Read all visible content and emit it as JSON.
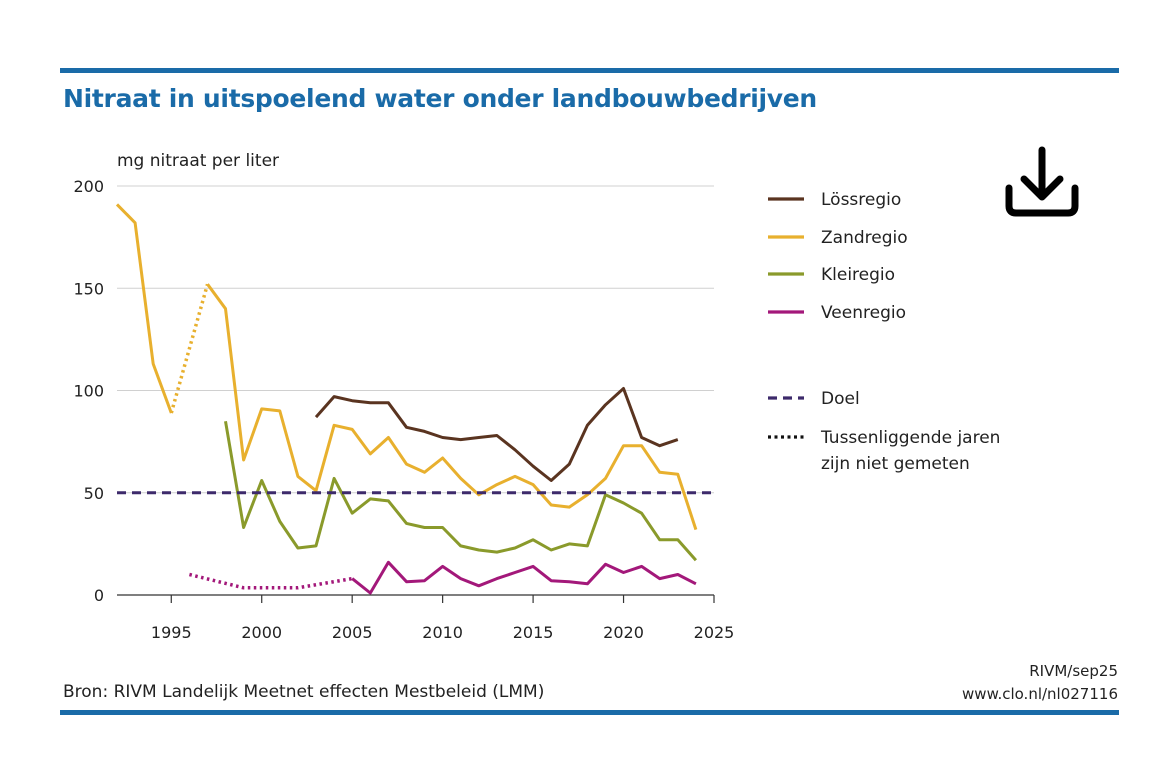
{
  "title": "Nitraat in uitspoelend water onder landbouwbedrijven",
  "source": "Bron: RIVM Landelijk Meetnet effecten Mestbeleid (LMM)",
  "credit_line1": "RIVM/sep25",
  "credit_line2": "www.clo.nl/nl027116",
  "colors": {
    "rule": "#1a6ba8",
    "title": "#1a6ba8",
    "grid": "#d0d0d0",
    "axis": "#333333"
  },
  "icons": {
    "download": "download-icon"
  },
  "chart_data": {
    "type": "line",
    "ylabel": "mg nitraat per liter",
    "xlim": [
      1992,
      2025
    ],
    "ylim": [
      0,
      200
    ],
    "x_ticks": [
      1995,
      2000,
      2005,
      2010,
      2015,
      2020,
      2025
    ],
    "y_ticks": [
      0,
      50,
      100,
      150,
      200
    ],
    "grid": true,
    "legend_position": "right",
    "series": [
      {
        "name": "Lössregio",
        "color": "#5a3420",
        "segments": [
          {
            "style": "solid",
            "points": [
              [
                2003,
                87
              ],
              [
                2004,
                97
              ],
              [
                2005,
                95
              ],
              [
                2006,
                94
              ],
              [
                2007,
                94
              ],
              [
                2008,
                82
              ],
              [
                2009,
                80
              ],
              [
                2010,
                77
              ],
              [
                2011,
                76
              ],
              [
                2012,
                77
              ],
              [
                2013,
                78
              ],
              [
                2014,
                71
              ],
              [
                2015,
                63
              ],
              [
                2016,
                56
              ],
              [
                2017,
                64
              ],
              [
                2018,
                83
              ],
              [
                2019,
                93
              ],
              [
                2020,
                101
              ],
              [
                2021,
                77
              ],
              [
                2022,
                73
              ],
              [
                2023,
                76
              ]
            ]
          }
        ]
      },
      {
        "name": "Zandregio",
        "color": "#e8b02e",
        "segments": [
          {
            "style": "solid",
            "points": [
              [
                1992,
                191
              ],
              [
                1993,
                182
              ],
              [
                1994,
                113
              ],
              [
                1995,
                89
              ]
            ]
          },
          {
            "style": "dotted",
            "points": [
              [
                1995,
                89
              ],
              [
                1997,
                152
              ]
            ]
          },
          {
            "style": "solid",
            "points": [
              [
                1997,
                152
              ],
              [
                1998,
                140
              ],
              [
                1999,
                66
              ],
              [
                2000,
                91
              ],
              [
                2001,
                90
              ],
              [
                2002,
                58
              ],
              [
                2003,
                51
              ],
              [
                2004,
                83
              ],
              [
                2005,
                81
              ],
              [
                2006,
                69
              ],
              [
                2007,
                77
              ],
              [
                2008,
                64
              ],
              [
                2009,
                60
              ],
              [
                2010,
                67
              ],
              [
                2011,
                57
              ],
              [
                2012,
                49
              ],
              [
                2013,
                54
              ],
              [
                2014,
                58
              ],
              [
                2015,
                54
              ],
              [
                2016,
                44
              ],
              [
                2017,
                43
              ],
              [
                2018,
                49
              ],
              [
                2019,
                57
              ],
              [
                2020,
                73
              ],
              [
                2021,
                73
              ],
              [
                2022,
                60
              ],
              [
                2023,
                59
              ],
              [
                2024,
                32
              ]
            ]
          }
        ]
      },
      {
        "name": "Kleiregio",
        "color": "#8a9a2b",
        "segments": [
          {
            "style": "solid",
            "points": [
              [
                1998,
                85
              ],
              [
                1999,
                33
              ],
              [
                2000,
                56
              ],
              [
                2001,
                36
              ],
              [
                2002,
                23
              ],
              [
                2003,
                24
              ],
              [
                2004,
                57
              ],
              [
                2005,
                40
              ],
              [
                2006,
                47
              ],
              [
                2007,
                46
              ],
              [
                2008,
                35
              ],
              [
                2009,
                33
              ],
              [
                2010,
                33
              ],
              [
                2011,
                24
              ],
              [
                2012,
                22
              ],
              [
                2013,
                21
              ],
              [
                2014,
                23
              ],
              [
                2015,
                27
              ],
              [
                2016,
                22
              ],
              [
                2017,
                25
              ],
              [
                2018,
                24
              ],
              [
                2019,
                49
              ],
              [
                2020,
                45
              ],
              [
                2021,
                40
              ],
              [
                2022,
                27
              ],
              [
                2023,
                27
              ],
              [
                2024,
                17
              ]
            ]
          }
        ]
      },
      {
        "name": "Veenregio",
        "color": "#a3187a",
        "segments": [
          {
            "style": "dotted",
            "points": [
              [
                1996,
                10
              ],
              [
                1999,
                3.5
              ],
              [
                2002,
                3.5
              ],
              [
                2005,
                8
              ]
            ]
          },
          {
            "style": "solid",
            "points": [
              [
                2005,
                8
              ],
              [
                2006,
                1
              ],
              [
                2007,
                16
              ],
              [
                2008,
                6.5
              ],
              [
                2009,
                7
              ],
              [
                2010,
                14
              ],
              [
                2011,
                8
              ],
              [
                2012,
                4.5
              ],
              [
                2013,
                8
              ],
              [
                2014,
                11
              ],
              [
                2015,
                14
              ],
              [
                2016,
                7
              ],
              [
                2017,
                6.5
              ],
              [
                2018,
                5.5
              ],
              [
                2019,
                15
              ],
              [
                2020,
                11
              ],
              [
                2021,
                14
              ],
              [
                2022,
                8
              ],
              [
                2023,
                10
              ],
              [
                2024,
                5.5
              ]
            ]
          }
        ]
      },
      {
        "name": "Doel",
        "color": "#3d2a6b",
        "style": "dashed",
        "segments": [
          {
            "style": "dashed",
            "points": [
              [
                1992,
                50
              ],
              [
                2025,
                50
              ]
            ]
          }
        ]
      }
    ],
    "legend": [
      {
        "label": "Lössregio",
        "color": "#5a3420",
        "style": "solid"
      },
      {
        "label": "Zandregio",
        "color": "#e8b02e",
        "style": "solid"
      },
      {
        "label": "Kleiregio",
        "color": "#8a9a2b",
        "style": "solid"
      },
      {
        "label": "Veenregio",
        "color": "#a3187a",
        "style": "solid"
      },
      {
        "label": "Doel",
        "color": "#3d2a6b",
        "style": "dashed"
      },
      {
        "label": "Tussenliggende jaren",
        "label_line2": "zijn niet gemeten",
        "color": "#111111",
        "style": "dotted"
      }
    ]
  }
}
